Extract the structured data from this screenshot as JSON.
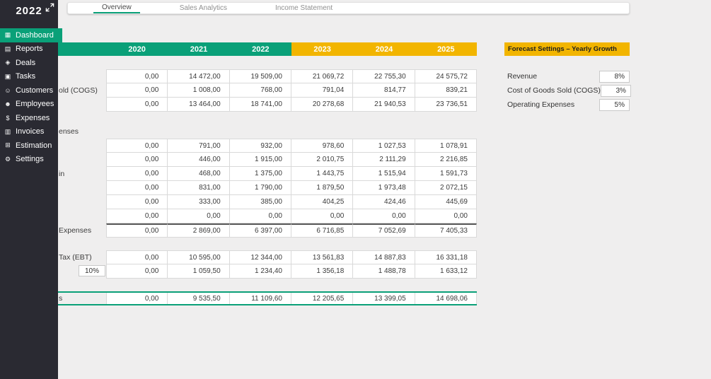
{
  "colors": {
    "accent_green": "#0aa078",
    "accent_yellow": "#f2b500",
    "sidebar_bg": "#2a2a32"
  },
  "sidebar": {
    "title": "2022",
    "items": [
      {
        "label": "Dashboard",
        "icon": "dashboard-icon",
        "glyph": "▦",
        "active": true
      },
      {
        "label": "Reports",
        "icon": "reports-icon",
        "glyph": "▤",
        "active": false
      },
      {
        "label": "Deals",
        "icon": "deals-icon",
        "glyph": "◈",
        "active": false
      },
      {
        "label": "Tasks",
        "icon": "tasks-icon",
        "glyph": "▣",
        "active": false
      },
      {
        "label": "Customers",
        "icon": "customers-icon",
        "glyph": "☺",
        "active": false
      },
      {
        "label": "Employees",
        "icon": "employees-icon",
        "glyph": "☻",
        "active": false
      },
      {
        "label": "Expenses",
        "icon": "expenses-icon",
        "glyph": "$",
        "active": false
      },
      {
        "label": "Invoices",
        "icon": "invoices-icon",
        "glyph": "▥",
        "active": false
      },
      {
        "label": "Estimation",
        "icon": "estimation-icon",
        "glyph": "⊞",
        "active": false
      },
      {
        "label": "Settings",
        "icon": "settings-icon",
        "glyph": "⚙",
        "active": false
      }
    ]
  },
  "tabs": [
    {
      "label": "Overview",
      "active": true
    },
    {
      "label": "Sales Analytics",
      "active": false
    },
    {
      "label": "Income Statement",
      "active": false
    }
  ],
  "table": {
    "year_columns": [
      {
        "label": "2020",
        "type": "actual"
      },
      {
        "label": "2021",
        "type": "actual"
      },
      {
        "label": "2022",
        "type": "actual"
      },
      {
        "label": "2023",
        "type": "forecast"
      },
      {
        "label": "2024",
        "type": "forecast"
      },
      {
        "label": "2025",
        "type": "forecast"
      }
    ],
    "sections": [
      {
        "kind": "spacer",
        "height": 19
      },
      {
        "kind": "rows",
        "rows": [
          {
            "label": "",
            "values": [
              "0,00",
              "14 472,00",
              "19 509,00",
              "21 069,72",
              "22 755,30",
              "24 575,72"
            ]
          },
          {
            "label": "old (COGS)",
            "values": [
              "0,00",
              "1 008,00",
              "768,00",
              "791,04",
              "814,77",
              "839,21"
            ]
          },
          {
            "label": "",
            "values": [
              "0,00",
              "13 464,00",
              "18 741,00",
              "20 278,68",
              "21 940,53",
              "23 736,51"
            ]
          }
        ]
      },
      {
        "kind": "section-label",
        "label": "enses"
      },
      {
        "kind": "rows",
        "rows": [
          {
            "label": "",
            "values": [
              "0,00",
              "791,00",
              "932,00",
              "978,60",
              "1 027,53",
              "1 078,91"
            ]
          },
          {
            "label": "",
            "values": [
              "0,00",
              "446,00",
              "1 915,00",
              "2 010,75",
              "2 111,29",
              "2 216,85"
            ]
          },
          {
            "label": "in",
            "values": [
              "0,00",
              "468,00",
              "1 375,00",
              "1 443,75",
              "1 515,94",
              "1 591,73"
            ]
          },
          {
            "label": "",
            "values": [
              "0,00",
              "831,00",
              "1 790,00",
              "1 879,50",
              "1 973,48",
              "2 072,15"
            ]
          },
          {
            "label": "",
            "values": [
              "0,00",
              "333,00",
              "385,00",
              "404,25",
              "424,46",
              "445,69"
            ]
          },
          {
            "label": "",
            "values": [
              "0,00",
              "0,00",
              "0,00",
              "0,00",
              "0,00",
              "0,00"
            ]
          }
        ]
      },
      {
        "kind": "total",
        "rows": [
          {
            "label": "Expenses",
            "values": [
              "0,00",
              "2 869,00",
              "6 397,00",
              "6 716,85",
              "7 052,69",
              "7 405,33"
            ]
          }
        ]
      },
      {
        "kind": "spacer",
        "height": 18
      },
      {
        "kind": "rows",
        "rows": [
          {
            "label": "Tax (EBT)",
            "values": [
              "0,00",
              "10 595,00",
              "12 344,00",
              "13 561,83",
              "14 887,83",
              "16 331,18"
            ]
          },
          {
            "label": "",
            "input": "10%",
            "values": [
              "0,00",
              "1 059,50",
              "1 234,40",
              "1 356,18",
              "1 488,78",
              "1 633,12"
            ]
          }
        ]
      },
      {
        "kind": "spacer",
        "height": 18
      },
      {
        "kind": "net",
        "rows": [
          {
            "label": "s",
            "values": [
              "0,00",
              "9 535,50",
              "11 109,60",
              "12 205,65",
              "13 399,05",
              "14 698,06"
            ]
          }
        ]
      }
    ]
  },
  "forecast_settings": {
    "title": "Forecast Settings – Yearly Growth",
    "rows": [
      {
        "label": "Revenue",
        "value": "8%"
      },
      {
        "label": "Cost of Goods Sold (COGS)",
        "value": "3%"
      },
      {
        "label": "Operating Expenses",
        "value": "5%"
      }
    ]
  }
}
